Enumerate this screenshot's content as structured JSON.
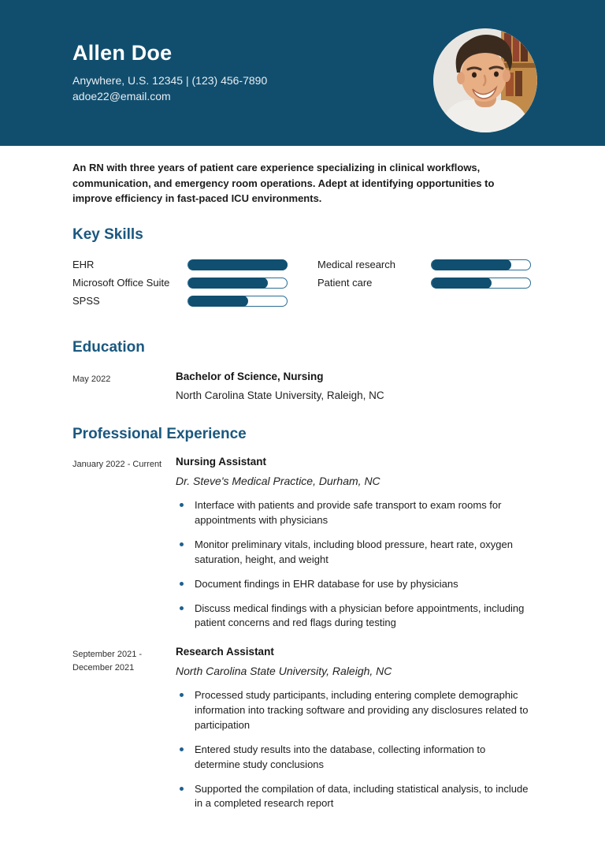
{
  "theme": {
    "accent": "#114E6E",
    "heading_color": "#1A587F",
    "bar_fill": "#114F70",
    "bar_border": "#2A6D94",
    "bullet_color": "#1E6090"
  },
  "header": {
    "name": "Allen Doe",
    "contact_line1": "Anywhere, U.S. 12345 | (123) 456-7890",
    "contact_line2": "adoe22@email.com",
    "photo": "profile-photo-of-smiling-man"
  },
  "summary": "An RN with three years of patient care experience specializing in clinical workflows, communication, and emergency room operations. Adept at identifying opportunities to improve efficiency in fast-paced ICU environments.",
  "key_skills": {
    "title": "Key Skills",
    "skills": [
      {
        "name": "EHR",
        "level": 100
      },
      {
        "name": "Microsoft Office Suite",
        "level": 80
      },
      {
        "name": "SPSS",
        "level": 60
      },
      {
        "name": "Medical research",
        "level": 80
      },
      {
        "name": "Patient care",
        "level": 60
      }
    ]
  },
  "education": {
    "title": "Education",
    "entries": [
      {
        "date": "May 2022",
        "degree": "Bachelor of Science, Nursing",
        "school": "North Carolina State University, Raleigh, NC"
      }
    ]
  },
  "experience": {
    "title": "Professional Experience",
    "entries": [
      {
        "date": "January 2022 - Current",
        "title": "Nursing Assistant",
        "company": "Dr. Steve's Medical Practice, Durham, NC",
        "bullets": [
          "Interface with patients and provide safe transport to exam rooms for appointments with physicians",
          "Monitor preliminary vitals, including blood pressure, heart rate, oxygen saturation, height, and weight",
          "Document findings in EHR database for use by physicians",
          "Discuss medical findings with a physician before appointments, including patient concerns and red flags during testing"
        ]
      },
      {
        "date": "September 2021 - December 2021",
        "title": "Research Assistant",
        "company": "North Carolina State University, Raleigh, NC",
        "bullets": [
          "Processed study participants, including entering complete demographic information into tracking software and providing any disclosures related to participation",
          "Entered study results into the database, collecting information to determine study conclusions",
          "Supported the compilation of data, including statistical analysis, to include in a completed research report"
        ]
      }
    ]
  }
}
